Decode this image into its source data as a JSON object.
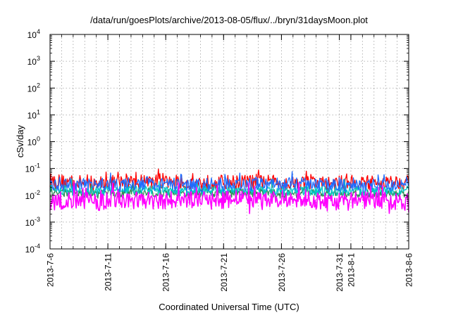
{
  "chart_data": {
    "type": "line",
    "title": "/data/run/goesPlots/archive/2013-08-05/flux/../bryn/31daysMoon.plot",
    "xlabel": "Coordinated Universal Time (UTC)",
    "ylabel": "cSv/day",
    "yscale": "log",
    "ylim": [
      0.0001,
      10000
    ],
    "y_ticks": [
      {
        "base": "10",
        "exp": "-4"
      },
      {
        "base": "10",
        "exp": "-3"
      },
      {
        "base": "10",
        "exp": "-2"
      },
      {
        "base": "10",
        "exp": "-1"
      },
      {
        "base": "10",
        "exp": "0"
      },
      {
        "base": "10",
        "exp": "1"
      },
      {
        "base": "10",
        "exp": "2"
      },
      {
        "base": "10",
        "exp": "3"
      },
      {
        "base": "10",
        "exp": "4"
      }
    ],
    "xlim": [
      "2013-07-06",
      "2013-08-06"
    ],
    "x_ticks": [
      "2013-7-6",
      "2013-7-11",
      "2013-7-16",
      "2013-7-21",
      "2013-7-26",
      "2013-7-31",
      "2013-8-1",
      "2013-8-6"
    ],
    "x_tick_dates": [
      "2013-07-06",
      "2013-07-11",
      "2013-07-16",
      "2013-07-21",
      "2013-07-26",
      "2013-07-31",
      "2013-08-01",
      "2013-08-06"
    ],
    "grid": true,
    "series_colors": [
      "#ff0000",
      "#2e8b57",
      "#00c8c8",
      "#1e6cff",
      "#ff00ff"
    ],
    "series": [
      {
        "color": "#ff0000",
        "x": [
          "2013-07-06",
          "2013-07-08",
          "2013-07-10",
          "2013-07-12",
          "2013-07-14",
          "2013-07-16",
          "2013-07-18",
          "2013-07-20",
          "2013-07-22",
          "2013-07-24",
          "2013-07-26",
          "2013-07-28",
          "2013-07-30",
          "2013-08-01",
          "2013-08-03",
          "2013-08-05",
          "2013-08-06"
        ],
        "values": [
          0.035,
          0.03,
          0.028,
          0.03,
          0.032,
          0.03,
          0.028,
          0.031,
          0.03,
          0.033,
          0.029,
          0.03,
          0.027,
          0.03,
          0.029,
          0.031,
          0.033
        ]
      },
      {
        "color": "#2e8b57",
        "x": [
          "2013-07-06",
          "2013-07-08",
          "2013-07-10",
          "2013-07-12",
          "2013-07-14",
          "2013-07-16",
          "2013-07-18",
          "2013-07-20",
          "2013-07-22",
          "2013-07-24",
          "2013-07-26",
          "2013-07-28",
          "2013-07-30",
          "2013-08-01",
          "2013-08-03",
          "2013-08-05",
          "2013-08-06"
        ],
        "values": [
          0.014,
          0.012,
          0.011,
          0.012,
          0.013,
          0.012,
          0.011,
          0.012,
          0.012,
          0.013,
          0.011,
          0.012,
          0.011,
          0.012,
          0.011,
          0.012,
          0.012
        ]
      },
      {
        "color": "#00c8c8",
        "x": [
          "2013-07-06",
          "2013-07-08",
          "2013-07-10",
          "2013-07-12",
          "2013-07-14",
          "2013-07-16",
          "2013-07-18",
          "2013-07-20",
          "2013-07-22",
          "2013-07-24",
          "2013-07-26",
          "2013-07-28",
          "2013-07-30",
          "2013-08-01",
          "2013-08-03",
          "2013-08-05",
          "2013-08-06"
        ],
        "values": [
          0.016,
          0.015,
          0.014,
          0.015,
          0.016,
          0.015,
          0.014,
          0.015,
          0.015,
          0.016,
          0.014,
          0.015,
          0.014,
          0.015,
          0.014,
          0.015,
          0.015
        ]
      },
      {
        "color": "#1e6cff",
        "x": [
          "2013-07-06",
          "2013-07-08",
          "2013-07-10",
          "2013-07-12",
          "2013-07-14",
          "2013-07-16",
          "2013-07-18",
          "2013-07-20",
          "2013-07-22",
          "2013-07-24",
          "2013-07-26",
          "2013-07-28",
          "2013-07-30",
          "2013-08-01",
          "2013-08-03",
          "2013-08-05",
          "2013-08-06"
        ],
        "values": [
          0.028,
          0.025,
          0.023,
          0.025,
          0.027,
          0.025,
          0.023,
          0.026,
          0.025,
          0.027,
          0.024,
          0.025,
          0.023,
          0.025,
          0.024,
          0.026,
          0.027
        ]
      },
      {
        "color": "#ff00ff",
        "x": [
          "2013-07-06",
          "2013-07-08",
          "2013-07-10",
          "2013-07-12",
          "2013-07-14",
          "2013-07-16",
          "2013-07-18",
          "2013-07-20",
          "2013-07-22",
          "2013-07-24",
          "2013-07-26",
          "2013-07-28",
          "2013-07-30",
          "2013-08-01",
          "2013-08-03",
          "2013-08-05",
          "2013-08-06"
        ],
        "values": [
          0.006,
          0.007,
          0.0055,
          0.008,
          0.006,
          0.0065,
          0.007,
          0.006,
          0.0075,
          0.006,
          0.0065,
          0.007,
          0.0055,
          0.006,
          0.0065,
          0.006,
          0.0055
        ]
      }
    ]
  }
}
